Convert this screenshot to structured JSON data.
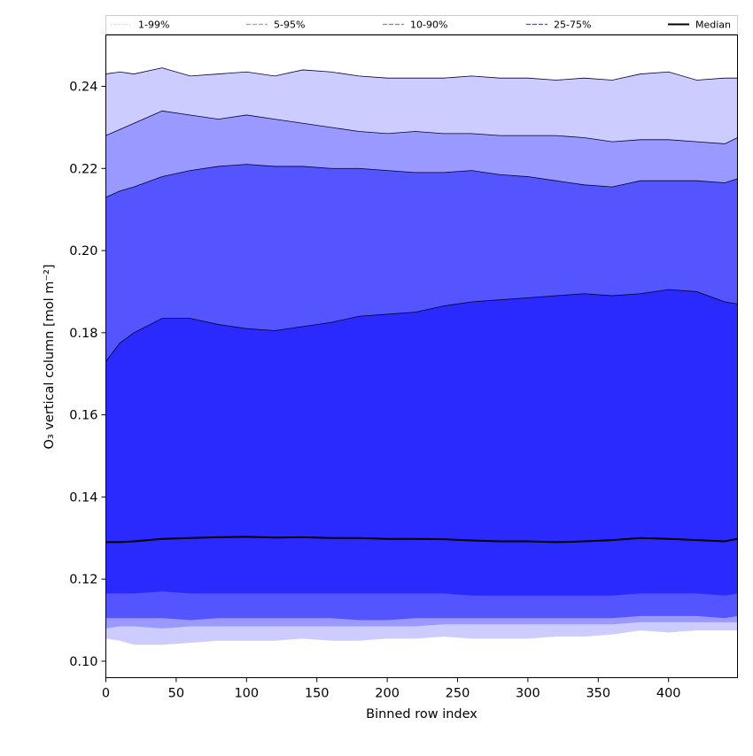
{
  "chart_data": {
    "type": "area",
    "xlabel": "Binned row index",
    "ylabel": "O₃ vertical column [mol m⁻²]",
    "xlim": [
      0,
      449
    ],
    "ylim": [
      0.096,
      0.2525
    ],
    "x_ticks": [
      0,
      50,
      100,
      150,
      200,
      250,
      300,
      350,
      400
    ],
    "y_ticks": [
      0.1,
      0.12,
      0.14,
      0.16,
      0.18,
      0.2,
      0.22,
      0.24
    ],
    "y_tick_labels": [
      "0.10",
      "0.12",
      "0.14",
      "0.16",
      "0.18",
      "0.20",
      "0.22",
      "0.24"
    ],
    "legend_position": "top",
    "grid": false,
    "x": [
      0,
      10,
      20,
      40,
      60,
      80,
      100,
      120,
      140,
      160,
      180,
      200,
      220,
      240,
      260,
      280,
      300,
      320,
      340,
      360,
      380,
      400,
      420,
      440,
      449
    ],
    "bands": [
      {
        "name": "1-99%",
        "color": "#ccccff",
        "upper": [
          0.243,
          0.2435,
          0.243,
          0.2445,
          0.2425,
          0.243,
          0.2435,
          0.2425,
          0.244,
          0.2435,
          0.2425,
          0.242,
          0.242,
          0.242,
          0.2425,
          0.242,
          0.242,
          0.2415,
          0.242,
          0.2415,
          0.243,
          0.2435,
          0.2415,
          0.242,
          0.242
        ],
        "lower": [
          0.1055,
          0.105,
          0.104,
          0.104,
          0.1045,
          0.105,
          0.105,
          0.105,
          0.1055,
          0.105,
          0.105,
          0.1055,
          0.1055,
          0.106,
          0.1055,
          0.1055,
          0.1055,
          0.106,
          0.106,
          0.1065,
          0.1075,
          0.107,
          0.1075,
          0.1075,
          0.1075
        ]
      },
      {
        "name": "5-95%",
        "color": "#9999ff",
        "upper": [
          0.228,
          0.2295,
          0.231,
          0.234,
          0.233,
          0.232,
          0.233,
          0.232,
          0.231,
          0.23,
          0.229,
          0.2285,
          0.229,
          0.2285,
          0.2285,
          0.228,
          0.228,
          0.228,
          0.2275,
          0.2265,
          0.227,
          0.227,
          0.2265,
          0.226,
          0.2275
        ],
        "lower": [
          0.108,
          0.1085,
          0.1085,
          0.108,
          0.1085,
          0.1085,
          0.1085,
          0.1085,
          0.1085,
          0.1085,
          0.1085,
          0.1085,
          0.1085,
          0.109,
          0.109,
          0.109,
          0.109,
          0.109,
          0.109,
          0.109,
          0.1095,
          0.1095,
          0.1095,
          0.1095,
          0.1095
        ]
      },
      {
        "name": "10-90%",
        "color": "#5555ff",
        "upper": [
          0.213,
          0.2145,
          0.2155,
          0.218,
          0.2195,
          0.2205,
          0.221,
          0.2205,
          0.2205,
          0.22,
          0.22,
          0.2195,
          0.219,
          0.219,
          0.2195,
          0.2185,
          0.218,
          0.217,
          0.216,
          0.2155,
          0.217,
          0.217,
          0.217,
          0.2165,
          0.2175
        ],
        "lower": [
          0.1105,
          0.1105,
          0.1105,
          0.1105,
          0.11,
          0.1105,
          0.1105,
          0.1105,
          0.1105,
          0.1105,
          0.11,
          0.11,
          0.1105,
          0.1105,
          0.1105,
          0.1105,
          0.1105,
          0.1105,
          0.1105,
          0.1105,
          0.111,
          0.111,
          0.111,
          0.1105,
          0.111
        ]
      },
      {
        "name": "25-75%",
        "color": "#2a2aff",
        "upper": [
          0.173,
          0.1775,
          0.18,
          0.1835,
          0.1835,
          0.182,
          0.181,
          0.1805,
          0.1815,
          0.1825,
          0.184,
          0.1845,
          0.185,
          0.1865,
          0.1875,
          0.188,
          0.1885,
          0.189,
          0.1895,
          0.189,
          0.1895,
          0.1905,
          0.19,
          0.1875,
          0.187
        ],
        "lower": [
          0.1165,
          0.1165,
          0.1165,
          0.117,
          0.1165,
          0.1165,
          0.1165,
          0.1165,
          0.1165,
          0.1165,
          0.1165,
          0.1165,
          0.1165,
          0.1165,
          0.116,
          0.116,
          0.116,
          0.116,
          0.116,
          0.116,
          0.1165,
          0.1165,
          0.1165,
          0.116,
          0.1165
        ]
      }
    ],
    "series": [
      {
        "name": "Median",
        "color": "#000000",
        "values": [
          0.129,
          0.129,
          0.1292,
          0.1298,
          0.13,
          0.1302,
          0.1303,
          0.1301,
          0.1302,
          0.13,
          0.13,
          0.1298,
          0.1298,
          0.1297,
          0.1294,
          0.1292,
          0.1292,
          0.129,
          0.1292,
          0.1295,
          0.13,
          0.1298,
          0.1295,
          0.1292,
          0.1298
        ]
      }
    ],
    "legend": [
      {
        "label": "1-99%",
        "color": "#ccccff",
        "style": "dotted"
      },
      {
        "label": "5-95%",
        "color": "#9999ff",
        "style": "dashed"
      },
      {
        "label": "10-90%",
        "color": "#7777ff",
        "style": "dashed"
      },
      {
        "label": "25-75%",
        "color": "#4444ff",
        "style": "dashed"
      },
      {
        "label": "Median",
        "color": "#000000",
        "style": "solid"
      }
    ]
  }
}
